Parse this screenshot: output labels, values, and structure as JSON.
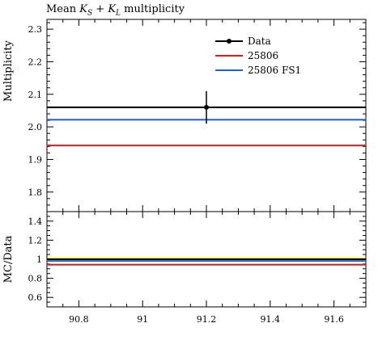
{
  "chart_data": [
    {
      "type": "line",
      "title_prefix": "Mean ",
      "title_k1": "K",
      "title_k1_sub": "S",
      "title_plus": " + ",
      "title_k2": "K",
      "title_k2_sub": "L",
      "title_suffix": " multiplicity",
      "xlim": [
        90.7,
        91.7
      ],
      "ylabel": "Multiplicity",
      "ylim": [
        1.74,
        2.33
      ],
      "y_ticks": [
        "1.8",
        "1.9",
        "2.0",
        "2.1",
        "2.2",
        "2.3"
      ],
      "legend_position": "top-right",
      "series": [
        {
          "name": "Data",
          "color": "#000000",
          "value": 2.06,
          "point_x": 91.2,
          "error_low": 2.01,
          "error_high": 2.11
        },
        {
          "name": "25806",
          "color": "#e31a1c",
          "value": 1.943
        },
        {
          "name": "25806 FS1",
          "color": "#1f5fd6",
          "value": 2.022
        }
      ]
    },
    {
      "type": "line",
      "ylabel": "MC/Data",
      "xlim": [
        90.7,
        91.7
      ],
      "ylim": [
        0.5,
        1.5
      ],
      "y_ticks": [
        "0.6",
        "0.8",
        "1",
        "1.2",
        "1.4"
      ],
      "x_ticks": [
        "90.8",
        "91",
        "91.2",
        "91.4",
        "91.6"
      ],
      "series": [
        {
          "color": "#ffff00",
          "band_low": 0.98,
          "band_high": 1.02
        },
        {
          "color": "#000000",
          "value": 1.0
        },
        {
          "color": "#1f5fd6",
          "value": 0.982
        },
        {
          "color": "#e31a1c",
          "value": 0.943
        }
      ]
    }
  ]
}
